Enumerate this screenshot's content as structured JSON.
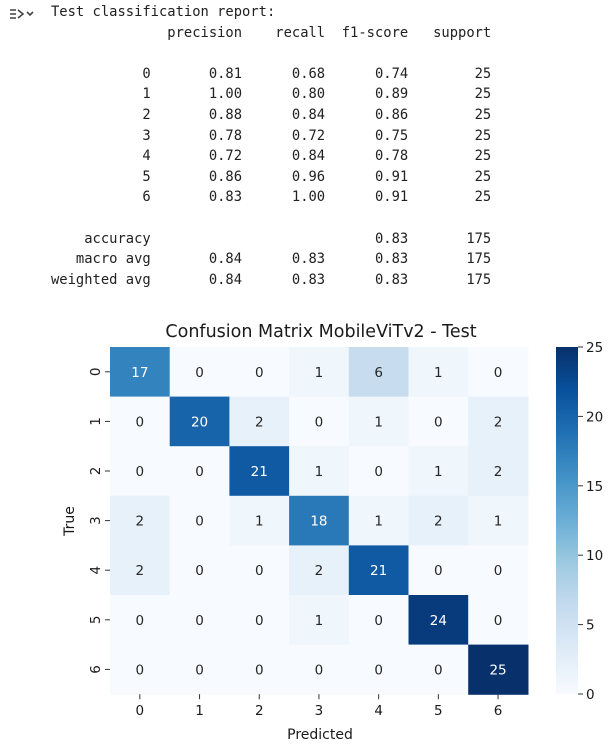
{
  "output": {
    "icon": "output-expand-icon",
    "report_lines": [
      "Test classification report:",
      "              precision    recall  f1-score   support",
      "",
      "           0       0.81      0.68      0.74        25",
      "           1       1.00      0.80      0.89        25",
      "           2       0.88      0.84      0.86        25",
      "           3       0.78      0.72      0.75        25",
      "           4       0.72      0.84      0.78        25",
      "           5       0.86      0.96      0.91        25",
      "           6       0.83      1.00      0.91        25",
      "",
      "    accuracy                           0.83       175",
      "   macro avg       0.84      0.83      0.83       175",
      "weighted avg       0.84      0.83      0.83       175"
    ]
  },
  "chart_data": {
    "type": "heatmap",
    "title": "Confusion Matrix MobileViTv2 - Test",
    "xlabel": "Predicted",
    "ylabel": "True",
    "x_categories": [
      "0",
      "1",
      "2",
      "3",
      "4",
      "5",
      "6"
    ],
    "y_categories": [
      "0",
      "1",
      "2",
      "3",
      "4",
      "5",
      "6"
    ],
    "matrix": [
      [
        17,
        0,
        0,
        1,
        6,
        1,
        0
      ],
      [
        0,
        20,
        2,
        0,
        1,
        0,
        2
      ],
      [
        0,
        0,
        21,
        1,
        0,
        1,
        2
      ],
      [
        2,
        0,
        1,
        18,
        1,
        2,
        1
      ],
      [
        2,
        0,
        0,
        2,
        21,
        0,
        0
      ],
      [
        0,
        0,
        0,
        1,
        0,
        24,
        0
      ],
      [
        0,
        0,
        0,
        0,
        0,
        0,
        25
      ]
    ],
    "colorbar": {
      "min": 0,
      "max": 25,
      "ticks": [
        0,
        5,
        10,
        15,
        20,
        25
      ]
    },
    "colormap": "Blues",
    "colors": {
      "low": "#f7fbff",
      "high": "#08306b"
    },
    "annotated": true,
    "grid": false
  }
}
